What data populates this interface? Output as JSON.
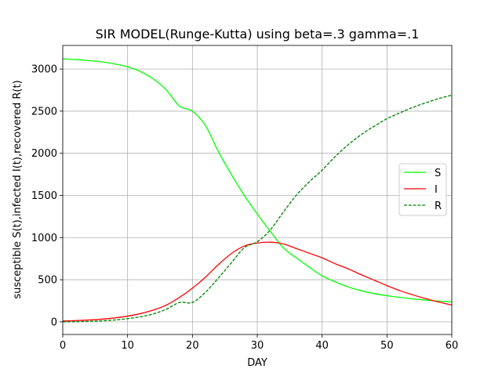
{
  "chart_data": {
    "type": "line",
    "title": "SIR MODEL(Runge-Kutta) using beta=.3 gamma=.1",
    "xlabel": "DAY",
    "ylabel": "susceptible S(t),infected I(t),recovered R(t)",
    "xlim": [
      0,
      60
    ],
    "ylim": [
      -150,
      3280
    ],
    "xticks": [
      0,
      10,
      20,
      30,
      40,
      50,
      60
    ],
    "yticks": [
      0,
      500,
      1000,
      1500,
      2000,
      2500,
      3000
    ],
    "grid": true,
    "legend_position": "center-right",
    "x": [
      0,
      2,
      4,
      6,
      8,
      10,
      12,
      14,
      16,
      18,
      20,
      22,
      24,
      26,
      28,
      30,
      32,
      34,
      36,
      38,
      40,
      42,
      44,
      46,
      48,
      50,
      52,
      54,
      56,
      58,
      60
    ],
    "series": [
      {
        "name": "S",
        "color": "#00ff00",
        "style": "solid",
        "values": [
          3120,
          3112,
          3100,
          3085,
          3060,
          3025,
          2970,
          2880,
          2750,
          2560,
          2500,
          2330,
          2020,
          1750,
          1500,
          1280,
          1075,
          880,
          760,
          650,
          545,
          475,
          415,
          370,
          335,
          310,
          290,
          272,
          258,
          246,
          238
        ]
      },
      {
        "name": "I",
        "color": "#ff0000",
        "style": "solid",
        "values": [
          10,
          15,
          22,
          32,
          47,
          68,
          98,
          140,
          200,
          290,
          400,
          530,
          680,
          810,
          900,
          935,
          945,
          925,
          870,
          815,
          760,
          690,
          630,
          560,
          495,
          430,
          370,
          320,
          275,
          235,
          200
        ]
      },
      {
        "name": "R",
        "color": "#008000",
        "style": "dashed",
        "values": [
          0,
          2,
          6,
          12,
          22,
          38,
          60,
          95,
          150,
          230,
          230,
          350,
          520,
          700,
          880,
          950,
          1090,
          1300,
          1500,
          1660,
          1800,
          1960,
          2100,
          2220,
          2320,
          2410,
          2480,
          2545,
          2600,
          2650,
          2690
        ]
      }
    ]
  }
}
